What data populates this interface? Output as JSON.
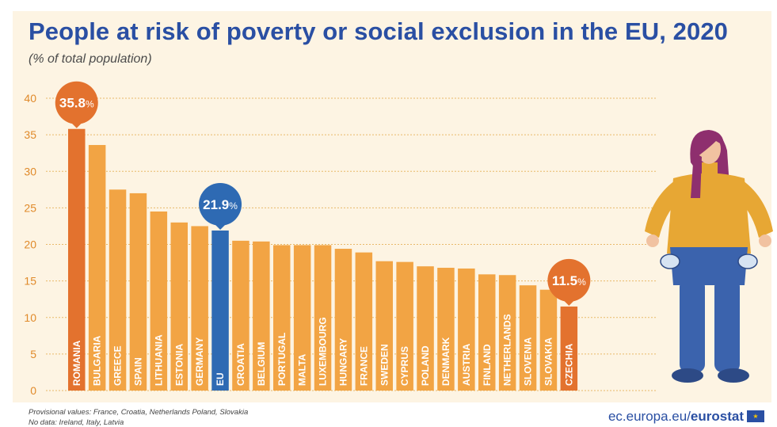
{
  "title": "People at risk of poverty or social exclusion in the EU, 2020",
  "subtitle": "(% of total population)",
  "footnotes": [
    "Provisional values: France, Croatia, Netherlands Poland,  Slovakia",
    "No data: Ireland, Italy, Latvia"
  ],
  "source": {
    "domain": "ec.europa.eu/",
    "brand": "eurostat"
  },
  "colors": {
    "bar": "#f2a444",
    "highlight": "#e3722e",
    "eu": "#2e6ab3",
    "grid": "#e8b96a",
    "axis_text": "#e08a2a"
  },
  "chart_data": {
    "type": "bar",
    "categories": [
      "ROMANIA",
      "BULGARIA",
      "GREECE",
      "SPAIN",
      "LITHUANIA",
      "ESTONIA",
      "GERMANY",
      "EU",
      "CROATIA",
      "BELGIUM",
      "PORTUGAL",
      "MALTA",
      "LUXEMBOURG",
      "HUNGARY",
      "FRANCE",
      "SWEDEN",
      "CYPRUS",
      "POLAND",
      "DENMARK",
      "AUSTRIA",
      "FINLAND",
      "NETHERLANDS",
      "SLOVENIA",
      "SLOVAKIA",
      "CZECHIA"
    ],
    "values": [
      35.8,
      33.6,
      27.5,
      27.0,
      24.5,
      23.0,
      22.5,
      21.9,
      20.5,
      20.4,
      19.9,
      19.9,
      19.9,
      19.4,
      18.9,
      17.7,
      17.6,
      17.0,
      16.8,
      16.7,
      15.9,
      15.8,
      14.4,
      13.8,
      11.5
    ],
    "highlighted": [
      "ROMANIA",
      "EU",
      "CZECHIA"
    ],
    "callouts": [
      {
        "category": "ROMANIA",
        "label": "35.8",
        "unit": "%"
      },
      {
        "category": "EU",
        "label": "21.9",
        "unit": "%"
      },
      {
        "category": "CZECHIA",
        "label": "11.5",
        "unit": "%"
      }
    ],
    "ylim": [
      0,
      40
    ],
    "yticks": [
      0,
      5,
      10,
      15,
      20,
      25,
      30,
      35,
      40
    ],
    "grid": true,
    "title": "People at risk of poverty or social exclusion in the EU, 2020",
    "ylabel": "(% of total population)",
    "xlabel": ""
  }
}
